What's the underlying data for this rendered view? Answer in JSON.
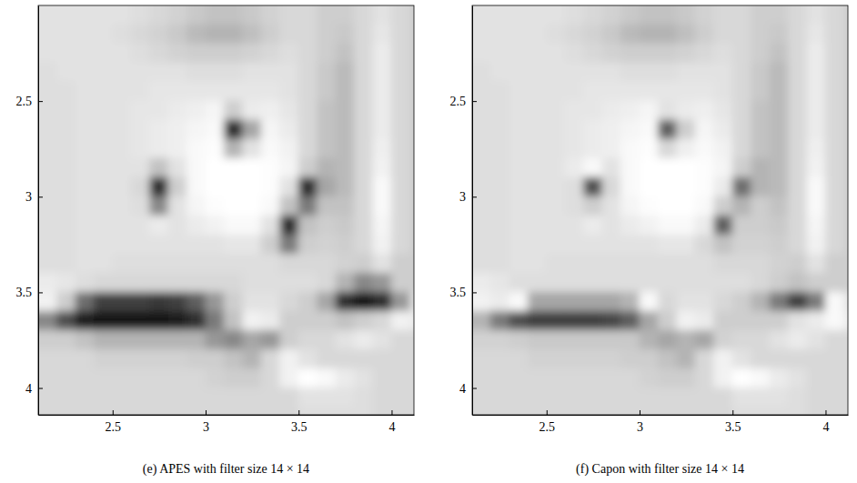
{
  "chart_data": [
    {
      "type": "heatmap",
      "title": "(e) APES with filter size 14 × 14",
      "xlim": [
        2.1,
        4.12
      ],
      "ylim": [
        2.0,
        4.14
      ],
      "xticks": [
        2.5,
        3,
        3.5,
        4
      ],
      "yticks": [
        2.5,
        3,
        3.5,
        4
      ],
      "x": [
        2.15,
        2.25,
        2.35,
        2.45,
        2.55,
        2.65,
        2.75,
        2.85,
        2.95,
        3.05,
        3.15,
        3.25,
        3.35,
        3.45,
        3.55,
        3.65,
        3.75,
        3.85,
        3.95,
        4.05,
        4.15
      ],
      "y": [
        2.05,
        2.15,
        2.25,
        2.35,
        2.45,
        2.55,
        2.65,
        2.75,
        2.85,
        2.95,
        3.05,
        3.15,
        3.25,
        3.35,
        3.45,
        3.55,
        3.65,
        3.75,
        3.85,
        3.95,
        4.05,
        4.15
      ],
      "z": [
        [
          0.2,
          0.2,
          0.2,
          0.2,
          0.2,
          0.22,
          0.25,
          0.28,
          0.32,
          0.35,
          0.35,
          0.32,
          0.28,
          0.25,
          0.25,
          0.3,
          0.3,
          0.25,
          0.2,
          0.25,
          0.3
        ],
        [
          0.2,
          0.2,
          0.2,
          0.2,
          0.22,
          0.25,
          0.28,
          0.32,
          0.38,
          0.4,
          0.4,
          0.36,
          0.3,
          0.25,
          0.25,
          0.3,
          0.32,
          0.25,
          0.18,
          0.25,
          0.3
        ],
        [
          0.2,
          0.2,
          0.2,
          0.2,
          0.2,
          0.22,
          0.25,
          0.28,
          0.3,
          0.3,
          0.3,
          0.28,
          0.25,
          0.22,
          0.25,
          0.3,
          0.35,
          0.25,
          0.15,
          0.25,
          0.3
        ],
        [
          0.22,
          0.2,
          0.2,
          0.2,
          0.2,
          0.2,
          0.2,
          0.2,
          0.22,
          0.22,
          0.22,
          0.2,
          0.2,
          0.2,
          0.25,
          0.32,
          0.38,
          0.25,
          0.15,
          0.25,
          0.3
        ],
        [
          0.22,
          0.22,
          0.2,
          0.2,
          0.2,
          0.2,
          0.18,
          0.18,
          0.18,
          0.18,
          0.18,
          0.18,
          0.18,
          0.2,
          0.25,
          0.32,
          0.38,
          0.25,
          0.15,
          0.25,
          0.3
        ],
        [
          0.22,
          0.22,
          0.2,
          0.2,
          0.2,
          0.18,
          0.18,
          0.15,
          0.12,
          0.08,
          0.3,
          0.15,
          0.12,
          0.18,
          0.25,
          0.35,
          0.38,
          0.25,
          0.15,
          0.25,
          0.3
        ],
        [
          0.22,
          0.22,
          0.2,
          0.2,
          0.2,
          0.18,
          0.15,
          0.12,
          0.08,
          0.05,
          0.85,
          0.45,
          0.08,
          0.15,
          0.25,
          0.35,
          0.38,
          0.25,
          0.15,
          0.25,
          0.3
        ],
        [
          0.22,
          0.22,
          0.2,
          0.2,
          0.2,
          0.18,
          0.15,
          0.12,
          0.05,
          0.02,
          0.4,
          0.2,
          0.05,
          0.1,
          0.25,
          0.35,
          0.38,
          0.25,
          0.12,
          0.25,
          0.3
        ],
        [
          0.22,
          0.22,
          0.2,
          0.2,
          0.2,
          0.2,
          0.35,
          0.2,
          0.05,
          0,
          0,
          0,
          0.02,
          0.08,
          0.3,
          0.4,
          0.38,
          0.25,
          0.1,
          0.25,
          0.3
        ],
        [
          0.22,
          0.22,
          0.2,
          0.2,
          0.2,
          0.25,
          0.85,
          0.3,
          0.05,
          0,
          0,
          0,
          0.02,
          0.2,
          0.85,
          0.45,
          0.38,
          0.25,
          0.05,
          0.25,
          0.3
        ],
        [
          0.22,
          0.22,
          0.2,
          0.2,
          0.2,
          0.22,
          0.55,
          0.2,
          0.08,
          0.02,
          0,
          0,
          0.05,
          0.35,
          0.6,
          0.35,
          0.35,
          0.25,
          0.05,
          0.25,
          0.3
        ],
        [
          0.22,
          0.22,
          0.2,
          0.2,
          0.2,
          0.2,
          0.15,
          0.2,
          0.15,
          0.1,
          0.05,
          0.05,
          0.2,
          0.85,
          0.35,
          0.3,
          0.32,
          0.25,
          0.08,
          0.25,
          0.3
        ],
        [
          0.22,
          0.22,
          0.2,
          0.2,
          0.2,
          0.2,
          0.2,
          0.2,
          0.2,
          0.2,
          0.18,
          0.18,
          0.3,
          0.6,
          0.3,
          0.28,
          0.3,
          0.25,
          0.1,
          0.25,
          0.3
        ],
        [
          0.22,
          0.22,
          0.2,
          0.2,
          0.22,
          0.22,
          0.22,
          0.22,
          0.22,
          0.22,
          0.22,
          0.22,
          0.22,
          0.25,
          0.25,
          0.25,
          0.28,
          0.3,
          0.2,
          0.3,
          0.3
        ],
        [
          0.15,
          0.18,
          0.22,
          0.25,
          0.25,
          0.25,
          0.25,
          0.25,
          0.25,
          0.25,
          0.25,
          0.22,
          0.22,
          0.22,
          0.22,
          0.25,
          0.4,
          0.55,
          0.5,
          0.3,
          0.3
        ],
        [
          0.1,
          0.3,
          0.65,
          0.8,
          0.8,
          0.8,
          0.82,
          0.8,
          0.7,
          0.5,
          0.3,
          0.2,
          0.2,
          0.25,
          0.3,
          0.45,
          0.85,
          0.92,
          0.85,
          0.5,
          0.2
        ],
        [
          0.55,
          0.75,
          0.9,
          0.92,
          0.92,
          0.92,
          0.92,
          0.9,
          0.85,
          0.6,
          0.35,
          0.1,
          0.15,
          0.3,
          0.3,
          0.3,
          0.35,
          0.3,
          0.25,
          0.1,
          0.15
        ],
        [
          0.3,
          0.3,
          0.35,
          0.4,
          0.4,
          0.4,
          0.4,
          0.4,
          0.4,
          0.5,
          0.55,
          0.45,
          0.5,
          0.3,
          0.25,
          0.25,
          0.2,
          0.15,
          0.2,
          0.25,
          0.25
        ],
        [
          0.25,
          0.25,
          0.25,
          0.28,
          0.28,
          0.28,
          0.28,
          0.28,
          0.3,
          0.3,
          0.35,
          0.4,
          0.25,
          0.1,
          0.2,
          0.25,
          0.25,
          0.25,
          0.25,
          0.25,
          0.25
        ],
        [
          0.25,
          0.25,
          0.25,
          0.25,
          0.25,
          0.25,
          0.25,
          0.25,
          0.25,
          0.28,
          0.3,
          0.3,
          0.25,
          0.1,
          0,
          0.05,
          0.15,
          0.2,
          0.25,
          0.25,
          0.25
        ],
        [
          0.25,
          0.25,
          0.25,
          0.25,
          0.25,
          0.25,
          0.25,
          0.25,
          0.25,
          0.25,
          0.25,
          0.25,
          0.25,
          0.25,
          0.2,
          0.2,
          0.2,
          0.22,
          0.25,
          0.25,
          0.25
        ],
        [
          0.25,
          0.25,
          0.25,
          0.25,
          0.25,
          0.25,
          0.25,
          0.25,
          0.25,
          0.25,
          0.25,
          0.25,
          0.25,
          0.25,
          0.22,
          0.22,
          0.22,
          0.22,
          0.25,
          0.25,
          0.25
        ]
      ]
    },
    {
      "type": "heatmap",
      "title": "(f) Capon with filter size 14 × 14",
      "xlim": [
        2.1,
        4.12
      ],
      "ylim": [
        2.0,
        4.14
      ],
      "xticks": [
        2.5,
        3,
        3.5,
        4
      ],
      "yticks": [
        2.5,
        3,
        3.5,
        4
      ],
      "x": [
        2.15,
        2.25,
        2.35,
        2.45,
        2.55,
        2.65,
        2.75,
        2.85,
        2.95,
        3.05,
        3.15,
        3.25,
        3.35,
        3.45,
        3.55,
        3.65,
        3.75,
        3.85,
        3.95,
        4.05,
        4.15
      ],
      "y": [
        2.05,
        2.15,
        2.25,
        2.35,
        2.45,
        2.55,
        2.65,
        2.75,
        2.85,
        2.95,
        3.05,
        3.15,
        3.25,
        3.35,
        3.45,
        3.55,
        3.65,
        3.75,
        3.85,
        3.95,
        4.05,
        4.15
      ],
      "z": [
        [
          0.2,
          0.2,
          0.2,
          0.2,
          0.2,
          0.22,
          0.25,
          0.28,
          0.32,
          0.35,
          0.35,
          0.32,
          0.28,
          0.25,
          0.25,
          0.3,
          0.3,
          0.25,
          0.2,
          0.25,
          0.3
        ],
        [
          0.2,
          0.2,
          0.2,
          0.2,
          0.22,
          0.25,
          0.28,
          0.32,
          0.38,
          0.4,
          0.4,
          0.36,
          0.3,
          0.25,
          0.25,
          0.3,
          0.32,
          0.25,
          0.18,
          0.25,
          0.3
        ],
        [
          0.2,
          0.2,
          0.2,
          0.2,
          0.2,
          0.22,
          0.25,
          0.28,
          0.3,
          0.3,
          0.3,
          0.28,
          0.25,
          0.22,
          0.25,
          0.3,
          0.35,
          0.25,
          0.15,
          0.25,
          0.3
        ],
        [
          0.22,
          0.2,
          0.2,
          0.2,
          0.2,
          0.2,
          0.2,
          0.2,
          0.22,
          0.22,
          0.22,
          0.2,
          0.2,
          0.2,
          0.25,
          0.32,
          0.38,
          0.25,
          0.15,
          0.25,
          0.3
        ],
        [
          0.22,
          0.22,
          0.2,
          0.2,
          0.2,
          0.2,
          0.18,
          0.18,
          0.18,
          0.18,
          0.18,
          0.18,
          0.18,
          0.2,
          0.25,
          0.32,
          0.38,
          0.25,
          0.15,
          0.25,
          0.3
        ],
        [
          0.22,
          0.22,
          0.2,
          0.2,
          0.2,
          0.18,
          0.18,
          0.15,
          0.12,
          0.08,
          0.2,
          0.15,
          0.12,
          0.18,
          0.25,
          0.35,
          0.38,
          0.25,
          0.15,
          0.25,
          0.3
        ],
        [
          0.22,
          0.22,
          0.2,
          0.2,
          0.2,
          0.18,
          0.15,
          0.12,
          0.08,
          0.05,
          0.7,
          0.3,
          0.08,
          0.15,
          0.25,
          0.35,
          0.38,
          0.25,
          0.15,
          0.25,
          0.3
        ],
        [
          0.22,
          0.22,
          0.2,
          0.2,
          0.2,
          0.18,
          0.15,
          0.12,
          0.05,
          0.02,
          0.25,
          0.12,
          0.05,
          0.1,
          0.25,
          0.35,
          0.38,
          0.25,
          0.12,
          0.25,
          0.3
        ],
        [
          0.22,
          0.22,
          0.2,
          0.2,
          0.2,
          0.15,
          0.05,
          0.2,
          0.05,
          0,
          0,
          0,
          0.02,
          0.08,
          0.3,
          0.4,
          0.38,
          0.25,
          0.1,
          0.25,
          0.3
        ],
        [
          0.22,
          0.22,
          0.2,
          0.2,
          0.2,
          0.22,
          0.75,
          0.25,
          0.05,
          0,
          0,
          0,
          0.02,
          0.15,
          0.65,
          0.4,
          0.38,
          0.25,
          0.05,
          0.25,
          0.3
        ],
        [
          0.22,
          0.22,
          0.2,
          0.2,
          0.2,
          0.22,
          0.3,
          0.2,
          0.08,
          0.02,
          0,
          0,
          0.05,
          0.3,
          0.4,
          0.3,
          0.35,
          0.25,
          0.05,
          0.25,
          0.3
        ],
        [
          0.22,
          0.22,
          0.2,
          0.2,
          0.2,
          0.2,
          0.15,
          0.2,
          0.15,
          0.1,
          0.05,
          0.05,
          0.15,
          0.7,
          0.3,
          0.3,
          0.32,
          0.25,
          0.08,
          0.25,
          0.3
        ],
        [
          0.22,
          0.22,
          0.2,
          0.2,
          0.2,
          0.2,
          0.2,
          0.2,
          0.2,
          0.2,
          0.18,
          0.18,
          0.25,
          0.35,
          0.28,
          0.28,
          0.3,
          0.25,
          0.1,
          0.25,
          0.3
        ],
        [
          0.22,
          0.22,
          0.2,
          0.2,
          0.22,
          0.22,
          0.22,
          0.22,
          0.22,
          0.22,
          0.22,
          0.22,
          0.22,
          0.25,
          0.25,
          0.25,
          0.28,
          0.3,
          0.2,
          0.3,
          0.3
        ],
        [
          0.15,
          0.18,
          0.22,
          0.22,
          0.22,
          0.22,
          0.22,
          0.22,
          0.22,
          0.22,
          0.22,
          0.22,
          0.22,
          0.22,
          0.22,
          0.25,
          0.3,
          0.35,
          0.3,
          0.3,
          0.3
        ],
        [
          0.1,
          0.15,
          0.05,
          0.45,
          0.45,
          0.45,
          0.45,
          0.45,
          0.4,
          0.05,
          0.25,
          0.2,
          0.2,
          0.25,
          0.3,
          0.4,
          0.6,
          0.8,
          0.6,
          0.05,
          0.2
        ],
        [
          0.4,
          0.6,
          0.75,
          0.8,
          0.8,
          0.8,
          0.8,
          0.78,
          0.7,
          0.45,
          0.3,
          0.1,
          0.15,
          0.3,
          0.3,
          0.3,
          0.3,
          0.2,
          0.15,
          0.05,
          0.15
        ],
        [
          0.28,
          0.28,
          0.3,
          0.32,
          0.32,
          0.32,
          0.32,
          0.32,
          0.32,
          0.4,
          0.45,
          0.4,
          0.45,
          0.28,
          0.25,
          0.25,
          0.2,
          0.15,
          0.2,
          0.25,
          0.25
        ],
        [
          0.25,
          0.25,
          0.25,
          0.28,
          0.28,
          0.28,
          0.28,
          0.28,
          0.3,
          0.3,
          0.35,
          0.4,
          0.25,
          0.1,
          0.2,
          0.25,
          0.25,
          0.25,
          0.25,
          0.25,
          0.25
        ],
        [
          0.25,
          0.25,
          0.25,
          0.25,
          0.25,
          0.25,
          0.25,
          0.25,
          0.25,
          0.28,
          0.3,
          0.3,
          0.25,
          0.1,
          0,
          0.05,
          0.15,
          0.2,
          0.25,
          0.25,
          0.25
        ],
        [
          0.25,
          0.25,
          0.25,
          0.25,
          0.25,
          0.25,
          0.25,
          0.25,
          0.25,
          0.25,
          0.25,
          0.25,
          0.25,
          0.25,
          0.2,
          0.2,
          0.2,
          0.22,
          0.25,
          0.25,
          0.25
        ],
        [
          0.25,
          0.25,
          0.25,
          0.25,
          0.25,
          0.25,
          0.25,
          0.25,
          0.25,
          0.25,
          0.25,
          0.25,
          0.25,
          0.25,
          0.22,
          0.22,
          0.22,
          0.22,
          0.25,
          0.25,
          0.25
        ]
      ]
    }
  ]
}
